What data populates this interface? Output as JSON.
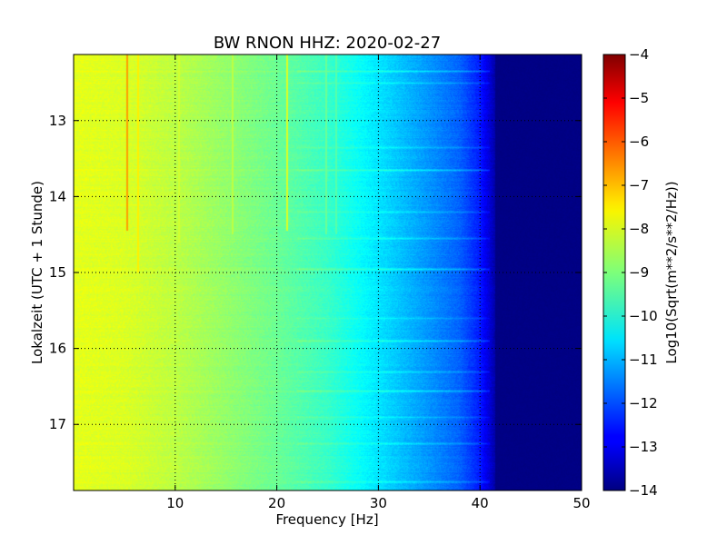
{
  "chart_data": {
    "type": "heatmap",
    "title": "BW RNON HHZ: 2020-02-27",
    "xlabel": "Frequency [Hz]",
    "ylabel": "Lokalzeit (UTC + 1 Stunde)",
    "xlim": [
      0,
      50
    ],
    "ylim": [
      12.13,
      17.87
    ],
    "y_inverted": true,
    "x_ticks": [
      10,
      20,
      30,
      40,
      50
    ],
    "x_tick_labels": [
      "10",
      "20",
      "30",
      "40",
      "50"
    ],
    "y_ticks": [
      13,
      14,
      15,
      16,
      17
    ],
    "y_tick_labels": [
      "13",
      "14",
      "15",
      "16",
      "17"
    ],
    "grid": true,
    "colorbar": {
      "label": "Log10(Sqrt(m**2/s**2/Hz))",
      "range": [
        -14,
        -4
      ],
      "ticks": [
        -4,
        -5,
        -6,
        -7,
        -8,
        -9,
        -10,
        -11,
        -12,
        -13,
        -14
      ],
      "tick_labels": [
        "−4",
        "−5",
        "−6",
        "−7",
        "−8",
        "−9",
        "−10",
        "−11",
        "−12",
        "−13",
        "−14"
      ],
      "colormap": "jet"
    },
    "spectrum_profile": {
      "frequency_hz": [
        0,
        5,
        10,
        15,
        20,
        25,
        30,
        35,
        38,
        40,
        41,
        42,
        50
      ],
      "log10_amplitude": [
        -8.0,
        -8.1,
        -8.4,
        -8.8,
        -9.2,
        -9.7,
        -10.5,
        -11.3,
        -11.8,
        -12.5,
        -13.2,
        -14.0,
        -14.0
      ]
    },
    "vertical_lines": [
      {
        "frequency_hz": 5.2,
        "from": 12.13,
        "to": 14.45,
        "value": -6.8
      },
      {
        "frequency_hz": 6.3,
        "from": 12.13,
        "to": 15.0,
        "value": -7.6
      },
      {
        "frequency_hz": 10.3,
        "from": 12.13,
        "to": 14.6,
        "value": -8.2
      },
      {
        "frequency_hz": 15.6,
        "from": 12.13,
        "to": 14.5,
        "value": -8.4
      },
      {
        "frequency_hz": 20.9,
        "from": 12.13,
        "to": 14.45,
        "value": -8.1
      },
      {
        "frequency_hz": 24.8,
        "from": 12.13,
        "to": 14.5,
        "value": -9.2
      },
      {
        "frequency_hz": 25.8,
        "from": 12.13,
        "to": 14.5,
        "value": -9.4
      }
    ],
    "horizontal_bands": [
      {
        "time": 12.35,
        "shift": 0.7
      },
      {
        "time": 12.5,
        "shift": 0.5
      },
      {
        "time": 13.35,
        "shift": 0.5
      },
      {
        "time": 13.65,
        "shift": 0.8
      },
      {
        "time": 14.2,
        "shift": 0.5
      },
      {
        "time": 14.55,
        "shift": 0.6
      },
      {
        "time": 14.95,
        "shift": 0.8
      },
      {
        "time": 15.6,
        "shift": 0.4
      },
      {
        "time": 15.9,
        "shift": 0.8
      },
      {
        "time": 16.3,
        "shift": 0.6
      },
      {
        "time": 16.55,
        "shift": 0.8
      },
      {
        "time": 16.9,
        "shift": 0.4
      },
      {
        "time": 17.25,
        "shift": 0.5
      },
      {
        "time": 17.75,
        "shift": 0.6
      }
    ]
  }
}
